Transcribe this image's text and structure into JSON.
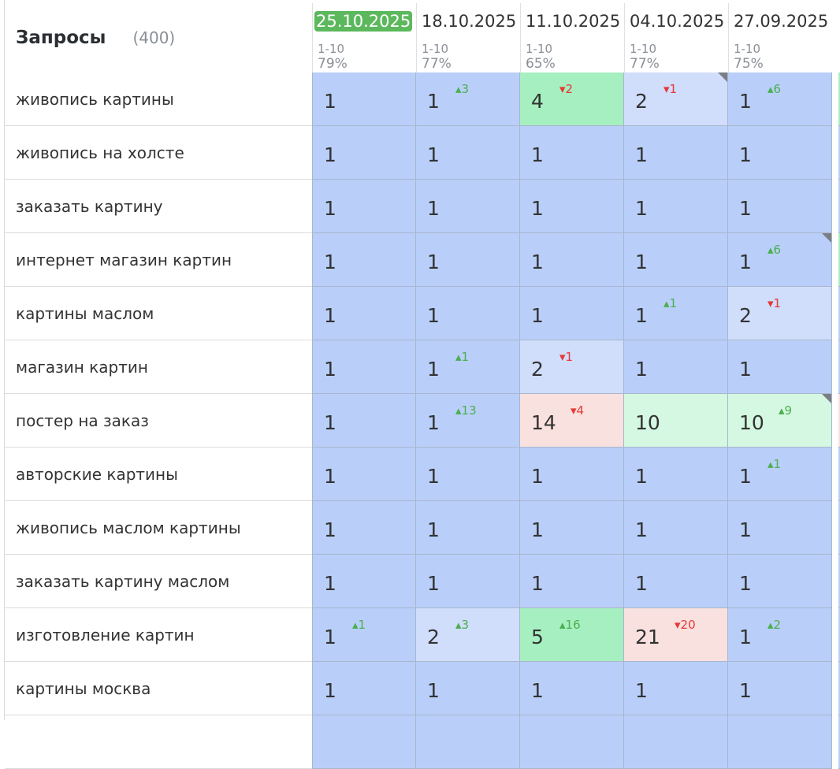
{
  "table": {
    "title": "Запросы",
    "count": "(400)",
    "columns": [
      {
        "date": "25.10.2025",
        "range": "1-10",
        "pct": "79%",
        "active": true
      },
      {
        "date": "18.10.2025",
        "range": "1-10",
        "pct": "77%",
        "active": false
      },
      {
        "date": "11.10.2025",
        "range": "1-10",
        "pct": "65%",
        "active": false
      },
      {
        "date": "04.10.2025",
        "range": "1-10",
        "pct": "77%",
        "active": false
      },
      {
        "date": "27.09.2025",
        "range": "1-10",
        "pct": "75%",
        "active": false
      }
    ],
    "rows": [
      {
        "keyword": "живопись картины",
        "edge": "green",
        "cells": [
          {
            "v": "1",
            "bg": "blue"
          },
          {
            "v": "1",
            "d": "3",
            "dir": "up",
            "bg": "blue"
          },
          {
            "v": "4",
            "d": "2",
            "dir": "down",
            "bg": "green"
          },
          {
            "v": "2",
            "d": "1",
            "dir": "down",
            "bg": "light",
            "corner": true
          },
          {
            "v": "1",
            "d": "6",
            "dir": "up",
            "bg": "blue"
          }
        ]
      },
      {
        "keyword": "живопись на холсте",
        "edge": "blue",
        "cells": [
          {
            "v": "1",
            "bg": "blue"
          },
          {
            "v": "1",
            "bg": "blue"
          },
          {
            "v": "1",
            "bg": "blue"
          },
          {
            "v": "1",
            "bg": "blue"
          },
          {
            "v": "1",
            "bg": "blue"
          }
        ]
      },
      {
        "keyword": "заказать картину",
        "edge": "blue",
        "cells": [
          {
            "v": "1",
            "bg": "blue"
          },
          {
            "v": "1",
            "bg": "blue"
          },
          {
            "v": "1",
            "bg": "blue"
          },
          {
            "v": "1",
            "bg": "blue"
          },
          {
            "v": "1",
            "bg": "blue"
          }
        ]
      },
      {
        "keyword": "интернет магазин картин",
        "edge": "green",
        "cells": [
          {
            "v": "1",
            "bg": "blue"
          },
          {
            "v": "1",
            "bg": "blue"
          },
          {
            "v": "1",
            "bg": "blue"
          },
          {
            "v": "1",
            "bg": "blue"
          },
          {
            "v": "1",
            "d": "6",
            "dir": "up",
            "bg": "blue",
            "corner": true
          }
        ]
      },
      {
        "keyword": "картины маслом",
        "edge": "blue",
        "cells": [
          {
            "v": "1",
            "bg": "blue"
          },
          {
            "v": "1",
            "bg": "blue"
          },
          {
            "v": "1",
            "bg": "blue"
          },
          {
            "v": "1",
            "d": "1",
            "dir": "up",
            "bg": "blue"
          },
          {
            "v": "2",
            "d": "1",
            "dir": "down",
            "bg": "light"
          }
        ]
      },
      {
        "keyword": "магазин картин",
        "edge": "blue",
        "cells": [
          {
            "v": "1",
            "bg": "blue"
          },
          {
            "v": "1",
            "d": "1",
            "dir": "up",
            "bg": "blue"
          },
          {
            "v": "2",
            "d": "1",
            "dir": "down",
            "bg": "light"
          },
          {
            "v": "1",
            "bg": "blue"
          },
          {
            "v": "1",
            "bg": "blue"
          }
        ]
      },
      {
        "keyword": "постер на заказ",
        "edge": "pink",
        "cells": [
          {
            "v": "1",
            "bg": "blue"
          },
          {
            "v": "1",
            "d": "13",
            "dir": "up",
            "bg": "blue"
          },
          {
            "v": "14",
            "d": "4",
            "dir": "down",
            "bg": "pink"
          },
          {
            "v": "10",
            "bg": "mint"
          },
          {
            "v": "10",
            "d": "9",
            "dir": "up",
            "bg": "mint",
            "corner": true
          }
        ]
      },
      {
        "keyword": "авторские картины",
        "edge": "blue",
        "cells": [
          {
            "v": "1",
            "bg": "blue"
          },
          {
            "v": "1",
            "bg": "blue"
          },
          {
            "v": "1",
            "bg": "blue"
          },
          {
            "v": "1",
            "bg": "blue"
          },
          {
            "v": "1",
            "d": "1",
            "dir": "up",
            "bg": "blue"
          }
        ]
      },
      {
        "keyword": "живопись маслом картины",
        "edge": "blue",
        "cells": [
          {
            "v": "1",
            "bg": "blue"
          },
          {
            "v": "1",
            "bg": "blue"
          },
          {
            "v": "1",
            "bg": "blue"
          },
          {
            "v": "1",
            "bg": "blue"
          },
          {
            "v": "1",
            "bg": "blue"
          }
        ]
      },
      {
        "keyword": "заказать картину маслом",
        "edge": "blue",
        "cells": [
          {
            "v": "1",
            "bg": "blue"
          },
          {
            "v": "1",
            "bg": "blue"
          },
          {
            "v": "1",
            "bg": "blue"
          },
          {
            "v": "1",
            "bg": "blue"
          },
          {
            "v": "1",
            "bg": "blue"
          }
        ]
      },
      {
        "keyword": "изготовление картин",
        "edge": "blue",
        "cells": [
          {
            "v": "1",
            "d": "1",
            "dir": "up",
            "bg": "blue"
          },
          {
            "v": "2",
            "d": "3",
            "dir": "up",
            "bg": "light"
          },
          {
            "v": "5",
            "d": "16",
            "dir": "up",
            "bg": "green"
          },
          {
            "v": "21",
            "d": "20",
            "dir": "down",
            "bg": "pink"
          },
          {
            "v": "1",
            "d": "2",
            "dir": "up",
            "bg": "blue"
          }
        ]
      },
      {
        "keyword": "картины москва",
        "edge": "blue",
        "cells": [
          {
            "v": "1",
            "bg": "blue"
          },
          {
            "v": "1",
            "bg": "blue"
          },
          {
            "v": "1",
            "bg": "blue"
          },
          {
            "v": "1",
            "bg": "blue"
          },
          {
            "v": "1",
            "bg": "blue"
          }
        ]
      },
      {
        "keyword": "",
        "edge": "blue",
        "cells": [
          {
            "v": "",
            "bg": "blue"
          },
          {
            "v": "",
            "bg": "blue"
          },
          {
            "v": "",
            "bg": "blue"
          },
          {
            "v": "",
            "bg": "blue"
          },
          {
            "v": "",
            "bg": "blue"
          }
        ]
      }
    ],
    "colors": {
      "blue": "#b9cffa",
      "light": "#d0ddfb",
      "green": "#a6efc0",
      "mint": "#d4f8e1",
      "pink": "#f9e1df",
      "up": "#4caf50",
      "down": "#e53935",
      "active_date": "#5cb85c"
    }
  }
}
